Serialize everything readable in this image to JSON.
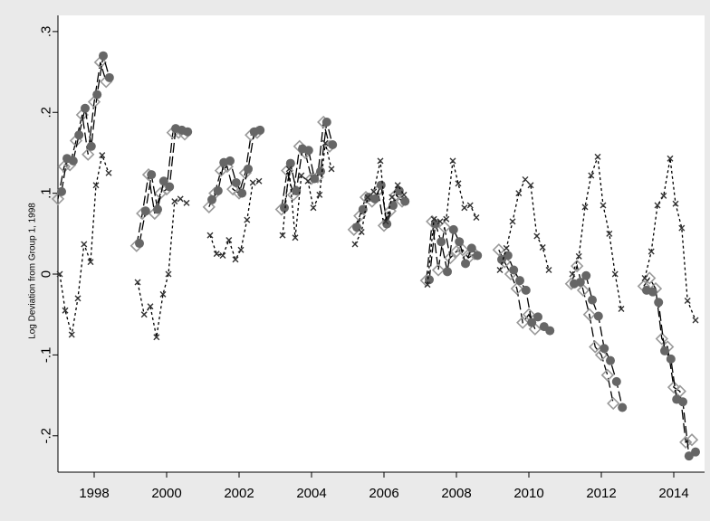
{
  "chart_data": {
    "type": "line",
    "title": "",
    "xlabel": "",
    "ylabel": "Log Deviation from Group 1, 1998",
    "xlim": [
      1997.0,
      2014.85
    ],
    "ylim": [
      -0.245,
      0.32
    ],
    "x_ticks": [
      1998,
      2000,
      2002,
      2004,
      2006,
      2008,
      2010,
      2012,
      2014
    ],
    "x_tick_labels": [
      "1998",
      "2000",
      "2002",
      "2004",
      "2006",
      "2008",
      "2010",
      "2012",
      "2014"
    ],
    "y_ticks": [
      0.3,
      0.2,
      0.1,
      0.0,
      -0.1,
      -0.2
    ],
    "y_tick_labels": [
      ".3",
      ".2",
      ".1",
      "0",
      "-.1",
      "-.2"
    ],
    "grid": false,
    "legend": "none",
    "series": [
      {
        "marker": "diamond-hollow",
        "line_style": "long-dash",
        "color": "#999999",
        "segments": [
          [
            [
              1997.0,
              0.093
            ],
            [
              1997.17,
              0.133
            ],
            [
              1997.33,
              0.135
            ],
            [
              1997.5,
              0.165
            ],
            [
              1997.67,
              0.197
            ],
            [
              1997.83,
              0.148
            ],
            [
              1998.0,
              0.213
            ],
            [
              1998.17,
              0.262
            ],
            [
              1998.33,
              0.238
            ]
          ],
          [
            [
              1999.17,
              0.035
            ],
            [
              1999.33,
              0.075
            ],
            [
              1999.5,
              0.123
            ],
            [
              1999.67,
              0.075
            ],
            [
              1999.83,
              0.1
            ],
            [
              2000.0,
              0.105
            ],
            [
              2000.17,
              0.175
            ],
            [
              2000.33,
              0.175
            ],
            [
              2000.5,
              0.173
            ]
          ],
          [
            [
              2001.17,
              0.083
            ],
            [
              2001.33,
              0.1
            ],
            [
              2001.5,
              0.128
            ],
            [
              2001.67,
              0.133
            ],
            [
              2001.83,
              0.105
            ],
            [
              2002.0,
              0.1
            ],
            [
              2002.17,
              0.125
            ],
            [
              2002.33,
              0.172
            ],
            [
              2002.5,
              0.175
            ]
          ],
          [
            [
              2003.17,
              0.08
            ],
            [
              2003.33,
              0.128
            ],
            [
              2003.5,
              0.098
            ],
            [
              2003.67,
              0.158
            ],
            [
              2003.83,
              0.15
            ],
            [
              2004.0,
              0.118
            ],
            [
              2004.17,
              0.12
            ],
            [
              2004.33,
              0.188
            ],
            [
              2004.5,
              0.158
            ]
          ],
          [
            [
              2005.17,
              0.055
            ],
            [
              2005.33,
              0.072
            ],
            [
              2005.5,
              0.095
            ],
            [
              2005.67,
              0.09
            ],
            [
              2005.83,
              0.103
            ],
            [
              2006.0,
              0.06
            ],
            [
              2006.17,
              0.078
            ],
            [
              2006.33,
              0.098
            ],
            [
              2006.5,
              0.09
            ]
          ],
          [
            [
              2007.17,
              -0.008
            ],
            [
              2007.33,
              0.065
            ],
            [
              2007.5,
              0.005
            ],
            [
              2007.67,
              0.058
            ],
            [
              2007.83,
              0.02
            ],
            [
              2008.0,
              0.028
            ],
            [
              2008.17,
              0.03
            ],
            [
              2008.33,
              0.02
            ],
            [
              2008.5,
              0.025
            ]
          ],
          [
            [
              2009.17,
              0.03
            ],
            [
              2009.33,
              0.015
            ],
            [
              2009.5,
              0.0
            ],
            [
              2009.67,
              -0.018
            ],
            [
              2009.83,
              -0.06
            ],
            [
              2010.0,
              -0.05
            ],
            [
              2010.17,
              -0.068
            ]
          ],
          [
            [
              2011.17,
              -0.012
            ],
            [
              2011.33,
              0.01
            ],
            [
              2011.5,
              -0.02
            ],
            [
              2011.67,
              -0.05
            ],
            [
              2011.83,
              -0.09
            ],
            [
              2012.0,
              -0.1
            ],
            [
              2012.17,
              -0.125
            ],
            [
              2012.33,
              -0.16
            ]
          ],
          [
            [
              2013.17,
              -0.015
            ],
            [
              2013.33,
              -0.005
            ],
            [
              2013.5,
              -0.018
            ],
            [
              2013.67,
              -0.08
            ],
            [
              2013.83,
              -0.09
            ],
            [
              2014.0,
              -0.14
            ],
            [
              2014.17,
              -0.145
            ],
            [
              2014.33,
              -0.208
            ],
            [
              2014.5,
              -0.205
            ]
          ]
        ]
      },
      {
        "marker": "circle-filled",
        "line_style": "long-dash",
        "color": "#666666",
        "segments": [
          [
            [
              1997.1,
              0.102
            ],
            [
              1997.25,
              0.143
            ],
            [
              1997.42,
              0.14
            ],
            [
              1997.58,
              0.172
            ],
            [
              1997.75,
              0.205
            ],
            [
              1997.92,
              0.158
            ],
            [
              1998.08,
              0.222
            ],
            [
              1998.25,
              0.27
            ],
            [
              1998.42,
              0.243
            ]
          ],
          [
            [
              1999.25,
              0.038
            ],
            [
              1999.42,
              0.078
            ],
            [
              1999.58,
              0.123
            ],
            [
              1999.75,
              0.08
            ],
            [
              1999.92,
              0.115
            ],
            [
              2000.08,
              0.108
            ],
            [
              2000.25,
              0.18
            ],
            [
              2000.42,
              0.178
            ],
            [
              2000.58,
              0.176
            ]
          ],
          [
            [
              2001.25,
              0.092
            ],
            [
              2001.42,
              0.103
            ],
            [
              2001.58,
              0.138
            ],
            [
              2001.75,
              0.14
            ],
            [
              2001.92,
              0.113
            ],
            [
              2002.08,
              0.1
            ],
            [
              2002.25,
              0.13
            ],
            [
              2002.42,
              0.176
            ],
            [
              2002.58,
              0.178
            ]
          ],
          [
            [
              2003.25,
              0.082
            ],
            [
              2003.42,
              0.137
            ],
            [
              2003.58,
              0.103
            ],
            [
              2003.75,
              0.155
            ],
            [
              2003.92,
              0.153
            ],
            [
              2004.08,
              0.118
            ],
            [
              2004.25,
              0.127
            ],
            [
              2004.42,
              0.188
            ],
            [
              2004.58,
              0.16
            ]
          ],
          [
            [
              2005.25,
              0.058
            ],
            [
              2005.42,
              0.08
            ],
            [
              2005.58,
              0.095
            ],
            [
              2005.75,
              0.093
            ],
            [
              2005.92,
              0.11
            ],
            [
              2006.08,
              0.062
            ],
            [
              2006.25,
              0.085
            ],
            [
              2006.42,
              0.103
            ],
            [
              2006.58,
              0.09
            ]
          ],
          [
            [
              2007.25,
              -0.007
            ],
            [
              2007.42,
              0.062
            ],
            [
              2007.58,
              0.04
            ],
            [
              2007.75,
              0.003
            ],
            [
              2007.92,
              0.055
            ],
            [
              2008.08,
              0.04
            ],
            [
              2008.25,
              0.013
            ],
            [
              2008.42,
              0.032
            ],
            [
              2008.58,
              0.023
            ]
          ],
          [
            [
              2009.25,
              0.018
            ],
            [
              2009.42,
              0.023
            ],
            [
              2009.58,
              0.005
            ],
            [
              2009.75,
              -0.008
            ],
            [
              2009.92,
              -0.02
            ],
            [
              2010.08,
              -0.06
            ],
            [
              2010.25,
              -0.053
            ],
            [
              2010.42,
              -0.065
            ],
            [
              2010.58,
              -0.07
            ]
          ],
          [
            [
              2011.25,
              -0.012
            ],
            [
              2011.42,
              -0.01
            ],
            [
              2011.58,
              -0.002
            ],
            [
              2011.75,
              -0.032
            ],
            [
              2011.92,
              -0.052
            ],
            [
              2012.08,
              -0.092
            ],
            [
              2012.25,
              -0.107
            ],
            [
              2012.42,
              -0.133
            ],
            [
              2012.58,
              -0.165
            ]
          ],
          [
            [
              2013.25,
              -0.02
            ],
            [
              2013.42,
              -0.022
            ],
            [
              2013.58,
              -0.035
            ],
            [
              2013.75,
              -0.095
            ],
            [
              2013.92,
              -0.105
            ],
            [
              2014.08,
              -0.155
            ],
            [
              2014.25,
              -0.158
            ],
            [
              2014.42,
              -0.225
            ],
            [
              2014.6,
              -0.22
            ]
          ]
        ]
      },
      {
        "marker": "x",
        "line_style": "short-dash",
        "color": "#333333",
        "segments": [
          [
            [
              1997.05,
              0.0
            ],
            [
              1997.2,
              -0.045
            ],
            [
              1997.38,
              -0.075
            ],
            [
              1997.55,
              -0.03
            ],
            [
              1997.72,
              0.037
            ],
            [
              1997.9,
              0.015
            ],
            [
              1998.05,
              0.11
            ],
            [
              1998.22,
              0.147
            ],
            [
              1998.4,
              0.125
            ]
          ],
          [
            [
              1999.2,
              -0.01
            ],
            [
              1999.38,
              -0.05
            ],
            [
              1999.55,
              -0.04
            ],
            [
              1999.72,
              -0.078
            ],
            [
              1999.9,
              -0.025
            ],
            [
              2000.05,
              0.0
            ],
            [
              2000.22,
              0.09
            ],
            [
              2000.38,
              0.093
            ],
            [
              2000.55,
              0.088
            ]
          ],
          [
            [
              2001.2,
              0.048
            ],
            [
              2001.38,
              0.025
            ],
            [
              2001.55,
              0.023
            ],
            [
              2001.72,
              0.042
            ],
            [
              2001.9,
              0.018
            ],
            [
              2002.05,
              0.03
            ],
            [
              2002.22,
              0.067
            ],
            [
              2002.38,
              0.113
            ],
            [
              2002.55,
              0.115
            ]
          ],
          [
            [
              2003.2,
              0.048
            ],
            [
              2003.38,
              0.13
            ],
            [
              2003.55,
              0.045
            ],
            [
              2003.72,
              0.122
            ],
            [
              2003.9,
              0.115
            ],
            [
              2004.05,
              0.082
            ],
            [
              2004.22,
              0.098
            ],
            [
              2004.38,
              0.162
            ],
            [
              2004.55,
              0.13
            ]
          ],
          [
            [
              2005.2,
              0.037
            ],
            [
              2005.38,
              0.052
            ],
            [
              2005.55,
              0.095
            ],
            [
              2005.72,
              0.102
            ],
            [
              2005.9,
              0.14
            ],
            [
              2006.05,
              0.065
            ],
            [
              2006.22,
              0.095
            ],
            [
              2006.38,
              0.11
            ],
            [
              2006.55,
              0.098
            ]
          ],
          [
            [
              2007.2,
              -0.013
            ],
            [
              2007.38,
              0.068
            ],
            [
              2007.55,
              0.065
            ],
            [
              2007.72,
              0.068
            ],
            [
              2007.9,
              0.14
            ],
            [
              2008.05,
              0.112
            ],
            [
              2008.22,
              0.082
            ],
            [
              2008.38,
              0.085
            ],
            [
              2008.55,
              0.07
            ]
          ],
          [
            [
              2009.2,
              0.005
            ],
            [
              2009.38,
              0.032
            ],
            [
              2009.55,
              0.065
            ],
            [
              2009.72,
              0.1
            ],
            [
              2009.9,
              0.117
            ],
            [
              2010.05,
              0.11
            ],
            [
              2010.22,
              0.047
            ],
            [
              2010.38,
              0.033
            ],
            [
              2010.55,
              0.005
            ]
          ],
          [
            [
              2011.2,
              0.0
            ],
            [
              2011.38,
              0.022
            ],
            [
              2011.55,
              0.083
            ],
            [
              2011.72,
              0.122
            ],
            [
              2011.9,
              0.145
            ],
            [
              2012.05,
              0.085
            ],
            [
              2012.22,
              0.05
            ],
            [
              2012.38,
              0.0
            ],
            [
              2012.55,
              -0.043
            ]
          ],
          [
            [
              2013.2,
              -0.005
            ],
            [
              2013.38,
              0.028
            ],
            [
              2013.55,
              0.085
            ],
            [
              2013.72,
              0.097
            ],
            [
              2013.9,
              0.143
            ],
            [
              2014.05,
              0.087
            ],
            [
              2014.22,
              0.057
            ],
            [
              2014.38,
              -0.033
            ],
            [
              2014.6,
              -0.057
            ]
          ]
        ]
      }
    ]
  }
}
